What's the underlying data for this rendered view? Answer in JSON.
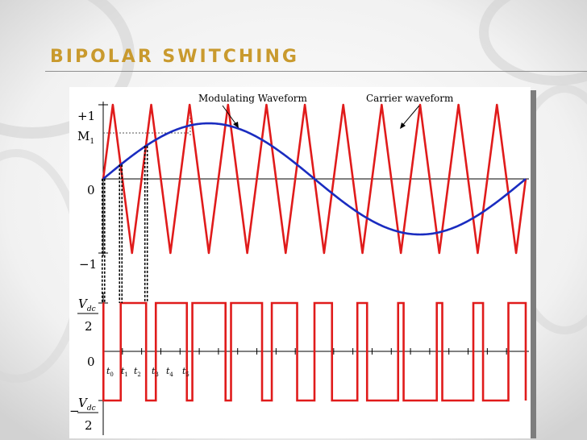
{
  "slide": {
    "title": "BIPOLAR SWITCHING",
    "accent_color": "#c99a2e"
  },
  "figure": {
    "labels": {
      "modulating": "Modulating Waveform",
      "carrier": "Carrier waveform"
    },
    "y_labels": {
      "plus_one": "+1",
      "m1": "M",
      "m1_sub": "1",
      "zero": "0",
      "minus_one": "−1",
      "zero_lower": "0"
    },
    "vdc": {
      "letter": "V",
      "sub": "dc",
      "denominator": "2",
      "minus": "−"
    },
    "time_labels": [
      "0",
      "1",
      "2",
      "3",
      "4",
      "5"
    ],
    "time_letter": "t",
    "colors": {
      "modulating": "#1a2cc0",
      "carrier": "#e01b1b",
      "switching": "#e01b1b",
      "axis": "#000000"
    },
    "modulation_index": 0.75,
    "carrier_cycles": 11
  }
}
